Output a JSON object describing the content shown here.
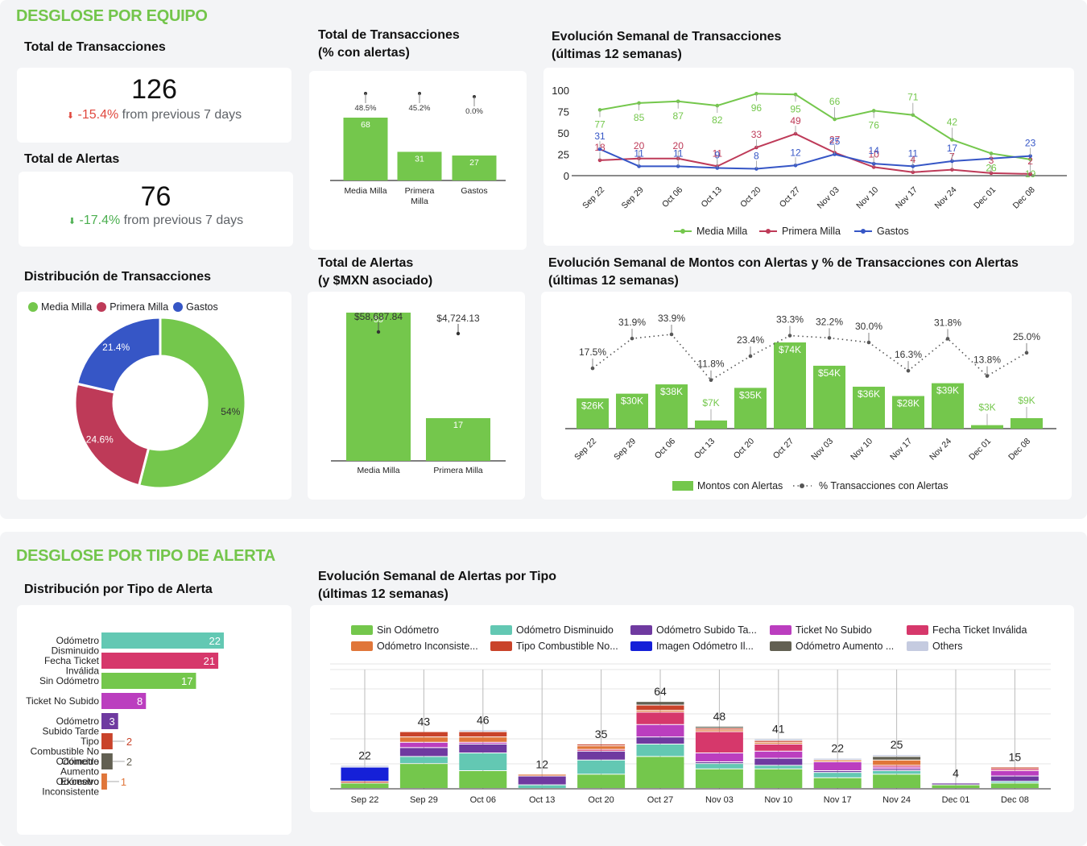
{
  "sections": {
    "equipo": "DESGLOSE POR EQUIPO",
    "tipo_alerta": "DESGLOSE POR TIPO DE ALERTA"
  },
  "colors": {
    "green": "#74c74c",
    "red": "#be3a58",
    "blue": "#3656c6",
    "accent": "#73c54b"
  },
  "kpis": {
    "transacciones": {
      "title": "Total de Transacciones",
      "value": "126",
      "delta": "-15.4%",
      "suffix": "from previous 7 days",
      "trend": "down",
      "delta_color": "#e0483e"
    },
    "alertas": {
      "title": "Total de Alertas",
      "value": "76",
      "delta": "-17.4%",
      "suffix": "from previous 7 days",
      "trend": "down",
      "delta_color": "#4caf50"
    }
  },
  "chart_data": [
    {
      "id": "tx_pct_alertas",
      "type": "bar",
      "title": "Total de Transacciones\n(% con alertas)",
      "title_lines": [
        "Total de Transacciones",
        "(% con alertas)"
      ],
      "categories": [
        "Media Milla",
        "Primera Milla",
        "Gastos"
      ],
      "category_lines": [
        [
          "Media Milla"
        ],
        [
          "Primera",
          "Milla"
        ],
        [
          "Gastos"
        ]
      ],
      "series": [
        {
          "name": "Transacciones",
          "values": [
            68,
            31,
            27
          ],
          "color": "#74c74c"
        },
        {
          "name": "% con alertas",
          "values": [
            48.5,
            45.2,
            0.0
          ],
          "labels": [
            "48.5%",
            "45.2%",
            "0.0%"
          ]
        }
      ]
    },
    {
      "id": "evolucion_tx",
      "type": "line",
      "title": "Evolución Semanal de Transacciones (últimas 12 semanas)",
      "title_lines": [
        "Evolución Semanal de Transacciones",
        "(últimas 12 semanas)"
      ],
      "x": [
        "Sep 22",
        "Sep 29",
        "Oct 06",
        "Oct 13",
        "Oct 20",
        "Oct 27",
        "Nov 03",
        "Nov 10",
        "Nov 17",
        "Nov 24",
        "Dec 01",
        "Dec 08"
      ],
      "ylim": [
        0,
        100
      ],
      "yticks": [
        0,
        25,
        50,
        75,
        100
      ],
      "series": [
        {
          "name": "Media Milla",
          "color": "#74c74c",
          "values": [
            77,
            85,
            87,
            82,
            96,
            95,
            66,
            76,
            71,
            42,
            26,
            19
          ]
        },
        {
          "name": "Primera Milla",
          "color": "#be3a58",
          "values": [
            18,
            20,
            20,
            11,
            33,
            49,
            27,
            10,
            4,
            7,
            3,
            2
          ]
        },
        {
          "name": "Gastos",
          "color": "#3656c6",
          "values": [
            31,
            11,
            11,
            9,
            8,
            12,
            25,
            14,
            11,
            17,
            null,
            23
          ]
        }
      ],
      "legend": "bottom"
    },
    {
      "id": "distribucion_tx",
      "type": "pie",
      "title": "Distribución de Transacciones",
      "categories": [
        "Media Milla",
        "Primera Milla",
        "Gastos"
      ],
      "values": [
        54.0,
        24.6,
        21.4
      ],
      "labels": [
        "54%",
        "24.6%",
        "21.4%"
      ],
      "colors": [
        "#74c74c",
        "#be3a58",
        "#3656c6"
      ],
      "legend": "top"
    },
    {
      "id": "total_alertas_mxn",
      "type": "bar",
      "title_lines": [
        "Total de Alertas",
        "(y $MXN asociado)"
      ],
      "categories": [
        "Media Milla",
        "Primera Milla"
      ],
      "series": [
        {
          "name": "Alertas",
          "values": [
            59,
            17
          ],
          "labels": [
            "59",
            "17"
          ],
          "color": "#74c74c"
        },
        {
          "name": "$MXN asociado",
          "values": [
            58687.84,
            4724.13
          ],
          "labels": [
            "$58,687.84",
            "$4,724.13"
          ]
        }
      ]
    },
    {
      "id": "montos_alertas",
      "type": "bar",
      "title": "Evolución Semanal de Montos con Alertas y % de Transacciones con Alertas (últimas 12 semanas)",
      "title_lines": [
        "Evolución Semanal de Montos con Alertas y % de Transacciones con Alertas",
        "(últimas 12 semanas)"
      ],
      "x": [
        "Sep 22",
        "Sep 29",
        "Oct 06",
        "Oct 13",
        "Oct 20",
        "Oct 27",
        "Nov 03",
        "Nov 10",
        "Nov 17",
        "Nov 24",
        "Dec 01",
        "Dec 08"
      ],
      "series": [
        {
          "name": "Montos con Alertas",
          "type": "bar",
          "color": "#74c74c",
          "values": [
            26,
            30,
            38,
            7,
            35,
            74,
            54,
            36,
            28,
            39,
            3,
            9
          ],
          "labels": [
            "$26K",
            "$30K",
            "$38K",
            "$7K",
            "$35K",
            "$74K",
            "$54K",
            "$36K",
            "$28K",
            "$39K",
            "$3K",
            "$9K"
          ]
        },
        {
          "name": "% Transacciones con Alertas",
          "type": "line",
          "style": "dotted",
          "color": "#555555",
          "values": [
            17.5,
            31.9,
            33.9,
            11.8,
            23.4,
            33.3,
            32.2,
            30.0,
            16.3,
            31.8,
            13.8,
            25.0
          ],
          "labels": [
            "17.5%",
            "31.9%",
            "33.9%",
            "11.8%",
            "23.4%",
            "33.3%",
            "32.2%",
            "30.0%",
            "16.3%",
            "31.8%",
            "13.8%",
            "25.0%"
          ]
        }
      ],
      "legend": "bottom"
    },
    {
      "id": "distribucion_tipo",
      "type": "bar",
      "orientation": "horizontal",
      "title": "Distribución por Tipo de Alerta",
      "categories": [
        "Odómetro Disminuido",
        "Fecha Ticket Inválida",
        "Sin Odómetro",
        "Ticket No Subido",
        "Odómetro Subido Tarde",
        "Tipo Combustible No Coincide",
        "Odómetro Aumento Excesivo",
        "Odómetro Inconsistente"
      ],
      "category_lines": [
        [
          "Odómetro",
          "Disminuido"
        ],
        [
          "Fecha Ticket",
          "Inválida"
        ],
        [
          "Sin Odómetro"
        ],
        [
          "Ticket No Subido"
        ],
        [
          "Odómetro",
          "Subido Tarde"
        ],
        [
          "Tipo",
          "Combustible No",
          "Coincide"
        ],
        [
          "Odómetro",
          "Aumento",
          "Excesivo"
        ],
        [
          "Odómetro",
          "Inconsistente"
        ]
      ],
      "values": [
        22,
        21,
        17,
        8,
        3,
        2,
        2,
        1
      ],
      "colors": [
        "#63c8b3",
        "#d6386b",
        "#74c74c",
        "#bb3ebf",
        "#6f3aa0",
        "#c9432a",
        "#626052",
        "#e0763a"
      ]
    },
    {
      "id": "alertas_por_tipo",
      "type": "bar",
      "stacked": true,
      "title": "Evolución Semanal de Alertas por Tipo (últimas 12 semanas)",
      "title_lines": [
        "Evolución Semanal de Alertas por Tipo",
        "(últimas 12 semanas)"
      ],
      "x": [
        "Sep 22",
        "Sep 29",
        "Oct 06",
        "Oct 13",
        "Oct 20",
        "Oct 27",
        "Nov 03",
        "Nov 10",
        "Nov 17",
        "Nov 24",
        "Dec 01",
        "Dec 08"
      ],
      "totals": [
        22,
        43,
        46,
        12,
        35,
        64,
        48,
        41,
        22,
        25,
        4,
        15
      ],
      "legend_items": [
        {
          "name": "Sin Odómetro",
          "color": "#74c74c"
        },
        {
          "name": "Odómetro Disminuido",
          "color": "#63c8b3"
        },
        {
          "name": "Odómetro Subido Ta...",
          "color": "#6f3aa0"
        },
        {
          "name": "Ticket No Subido",
          "color": "#bb3ebf"
        },
        {
          "name": "Fecha Ticket Inválida",
          "color": "#d6386b"
        },
        {
          "name": "Odómetro Inconsiste...",
          "color": "#e0763a"
        },
        {
          "name": "Tipo Combustible No...",
          "color": "#c9432a"
        },
        {
          "name": "Imagen Odómetro Il...",
          "color": "#1520d8"
        },
        {
          "name": "Odómetro Aumento ...",
          "color": "#626052"
        },
        {
          "name": "Others",
          "color": "#c5cbe0"
        }
      ],
      "series": [
        {
          "name": "Sin Odómetro",
          "values": [
            3,
            14,
            10,
            0,
            8,
            18,
            11,
            11,
            6,
            8,
            2,
            3
          ]
        },
        {
          "name": "Odómetro Disminuido",
          "values": [
            0,
            4,
            10,
            2,
            8,
            7,
            3,
            2,
            3,
            2,
            0,
            1
          ]
        },
        {
          "name": "Odómetro Subido Tarde",
          "values": [
            0,
            5,
            5,
            5,
            5,
            4,
            1,
            4,
            1,
            1,
            1,
            3
          ]
        },
        {
          "name": "Ticket No Subido",
          "values": [
            0,
            3,
            1,
            0,
            0,
            7,
            5,
            4,
            5,
            1,
            0,
            3
          ]
        },
        {
          "name": "Fecha Ticket Inválida",
          "values": [
            0,
            0,
            0,
            0,
            1,
            7,
            12,
            4,
            0,
            1,
            0,
            1
          ]
        },
        {
          "name": "Odómetro Inconsistente",
          "values": [
            0,
            3,
            3,
            1,
            2,
            1,
            1,
            1,
            1,
            3,
            0,
            0
          ]
        },
        {
          "name": "Tipo Combustible No Coincide",
          "values": [
            1,
            3,
            3,
            0,
            1,
            3,
            1,
            1,
            0,
            0,
            0,
            1
          ]
        },
        {
          "name": "Imagen Odómetro Ilegible",
          "values": [
            8,
            0,
            0,
            0,
            0,
            0,
            0,
            0,
            0,
            0,
            0,
            0
          ]
        },
        {
          "name": "Odómetro Aumento Excesivo",
          "values": [
            0,
            0,
            0,
            0,
            0,
            2,
            1,
            0,
            0,
            2,
            0,
            0
          ]
        },
        {
          "name": "Others",
          "values": [
            1,
            0,
            1,
            0,
            0,
            0,
            0,
            1,
            1,
            1,
            0,
            0
          ]
        }
      ],
      "legend": "top"
    }
  ]
}
